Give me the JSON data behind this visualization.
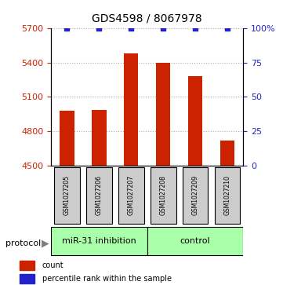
{
  "title": "GDS4598 / 8067978",
  "samples": [
    "GSM1027205",
    "GSM1027206",
    "GSM1027207",
    "GSM1027208",
    "GSM1027209",
    "GSM1027210"
  ],
  "counts": [
    4980,
    4985,
    5480,
    5400,
    5280,
    4720
  ],
  "percentile_ranks": [
    100,
    100,
    100,
    100,
    100,
    100
  ],
  "ylim_left": [
    4500,
    5700
  ],
  "ylim_right": [
    0,
    100
  ],
  "yticks_left": [
    4500,
    4800,
    5100,
    5400,
    5700
  ],
  "yticks_right": [
    0,
    25,
    50,
    75,
    100
  ],
  "bar_color": "#cc2200",
  "dot_color": "#2222cc",
  "groups": [
    {
      "label": "miR-31 inhibition",
      "color": "#aaffaa"
    },
    {
      "label": "control",
      "color": "#aaffaa"
    }
  ],
  "protocol_label": "protocol",
  "legend_count_label": "count",
  "legend_pct_label": "percentile rank within the sample",
  "left_axis_color": "#cc2200",
  "right_axis_color": "#2222cc",
  "background_color": "#ffffff",
  "plot_bg_color": "#ffffff",
  "grid_color": "#aaaaaa",
  "sample_box_color": "#cccccc"
}
